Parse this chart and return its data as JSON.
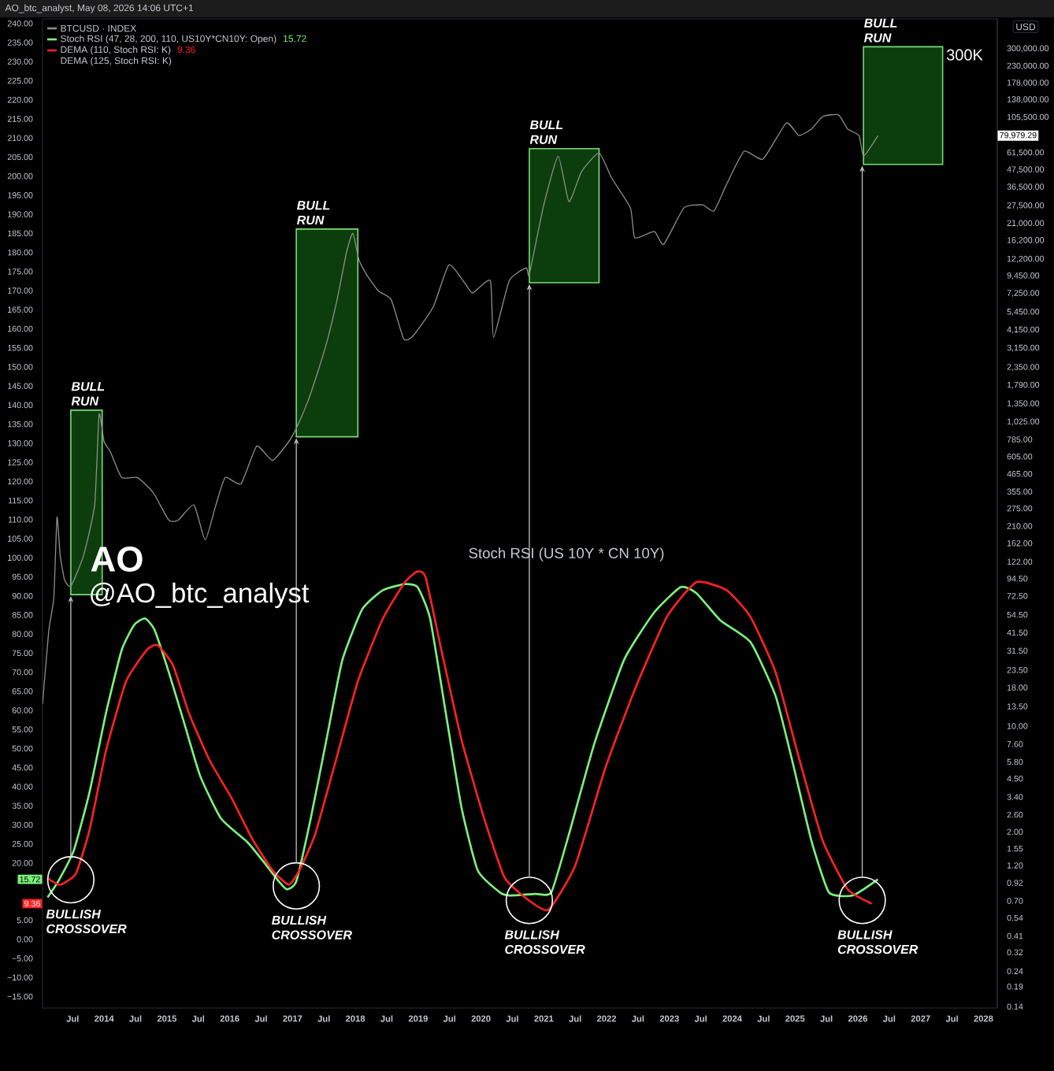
{
  "chart_data": {
    "type": "line",
    "title": "AO_btc_analyst, May 08, 2026 14:06 UTC+1",
    "y2label": "USD",
    "xlim": [
      2013.02,
      2028.22
    ],
    "xticks": [
      {
        "value": 2013.5,
        "label": "Jul"
      },
      2014,
      {
        "value": 2014.5,
        "label": "Jul"
      },
      2015,
      {
        "value": 2015.5,
        "label": "Jul"
      },
      2016,
      {
        "value": 2016.5,
        "label": "Jul"
      },
      2017,
      {
        "value": 2017.5,
        "label": "Jul"
      },
      2018,
      {
        "value": 2018.5,
        "label": "Jul"
      },
      2019,
      {
        "value": 2019.5,
        "label": "Jul"
      },
      2020,
      {
        "value": 2020.5,
        "label": "Jul"
      },
      2021,
      {
        "value": 2021.5,
        "label": "Jul"
      },
      2022,
      {
        "value": 2022.5,
        "label": "Jul"
      },
      2023,
      {
        "value": 2023.5,
        "label": "Jul"
      },
      2024,
      {
        "value": 2024.5,
        "label": "Jul"
      },
      2025,
      {
        "value": 2025.5,
        "label": "Jul"
      },
      2026,
      {
        "value": 2026.5,
        "label": "Jul"
      },
      2027,
      {
        "value": 2027.5,
        "label": "Jul"
      },
      2028
    ],
    "ylim": [
      -18,
      241.2
    ],
    "yticks": [
      {
        "value": -15,
        "label": "−15.00"
      },
      {
        "value": -10,
        "label": "−10.00"
      },
      {
        "value": -5,
        "label": "−5.00"
      },
      {
        "value": 0,
        "label": "0.00"
      },
      {
        "value": 5,
        "label": "5.00"
      },
      {
        "value": 20,
        "label": "20.00"
      },
      {
        "value": 25,
        "label": "25.00"
      },
      {
        "value": 30,
        "label": "30.00"
      },
      {
        "value": 35,
        "label": "35.00"
      },
      {
        "value": 40,
        "label": "40.00"
      },
      {
        "value": 45,
        "label": "45.00"
      },
      {
        "value": 50,
        "label": "50.00"
      },
      {
        "value": 55,
        "label": "55.00"
      },
      {
        "value": 60,
        "label": "60.00"
      },
      {
        "value": 65,
        "label": "65.00"
      },
      {
        "value": 70,
        "label": "70.00"
      },
      {
        "value": 75,
        "label": "75.00"
      },
      {
        "value": 80,
        "label": "80.00"
      },
      {
        "value": 85,
        "label": "85.00"
      },
      {
        "value": 90,
        "label": "90.00"
      },
      {
        "value": 95,
        "label": "95.00"
      },
      {
        "value": 100,
        "label": "100.00"
      },
      {
        "value": 105,
        "label": "105.00"
      },
      {
        "value": 110,
        "label": "110.00"
      },
      {
        "value": 115,
        "label": "115.00"
      },
      {
        "value": 120,
        "label": "120.00"
      },
      {
        "value": 125,
        "label": "125.00"
      },
      {
        "value": 130,
        "label": "130.00"
      },
      {
        "value": 135,
        "label": "135.00"
      },
      {
        "value": 140,
        "label": "140.00"
      },
      {
        "value": 145,
        "label": "145.00"
      },
      {
        "value": 150,
        "label": "150.00"
      },
      {
        "value": 155,
        "label": "155.00"
      },
      {
        "value": 160,
        "label": "160.00"
      },
      {
        "value": 165,
        "label": "165.00"
      },
      {
        "value": 170,
        "label": "170.00"
      },
      {
        "value": 175,
        "label": "175.00"
      },
      {
        "value": 180,
        "label": "180.00"
      },
      {
        "value": 185,
        "label": "185.00"
      },
      {
        "value": 190,
        "label": "190.00"
      },
      {
        "value": 195,
        "label": "195.00"
      },
      {
        "value": 200,
        "label": "200.00"
      },
      {
        "value": 205,
        "label": "205.00"
      },
      {
        "value": 210,
        "label": "210.00"
      },
      {
        "value": 215,
        "label": "215.00"
      },
      {
        "value": 220,
        "label": "220.00"
      },
      {
        "value": 225,
        "label": "225.00"
      },
      {
        "value": 230,
        "label": "230.00"
      },
      {
        "value": 235,
        "label": "235.00"
      },
      {
        "value": 240,
        "label": "240.00"
      }
    ],
    "log": "y2",
    "y2lim": [
      0.137,
      473000
    ],
    "y2ticks": [
      {
        "value": 300000,
        "label": "300,000.00"
      },
      {
        "value": 230000,
        "label": "230,000.00"
      },
      {
        "value": 178000,
        "label": "178,000.00"
      },
      {
        "value": 138000,
        "label": "138,000.00"
      },
      {
        "value": 105500,
        "label": "105,500.00"
      },
      {
        "value": 61500,
        "label": "61,500.00"
      },
      {
        "value": 47500,
        "label": "47,500.00"
      },
      {
        "value": 36500,
        "label": "36,500.00"
      },
      {
        "value": 27500,
        "label": "27,500.00"
      },
      {
        "value": 21000,
        "label": "21,000.00"
      },
      {
        "value": 16200,
        "label": "16,200.00"
      },
      {
        "value": 12200,
        "label": "12,200.00"
      },
      {
        "value": 9450,
        "label": "9,450.00"
      },
      {
        "value": 7250,
        "label": "7,250.00"
      },
      {
        "value": 5450,
        "label": "5,450.00"
      },
      {
        "value": 4150,
        "label": "4,150.00"
      },
      {
        "value": 3150,
        "label": "3,150.00"
      },
      {
        "value": 2350,
        "label": "2,350.00"
      },
      {
        "value": 1790,
        "label": "1,790.00"
      },
      {
        "value": 1350,
        "label": "1,350.00"
      },
      {
        "value": 1025,
        "label": "1,025.00"
      },
      {
        "value": 785,
        "label": "785.00"
      },
      {
        "value": 605,
        "label": "605.00"
      },
      {
        "value": 465,
        "label": "465.00"
      },
      {
        "value": 355,
        "label": "355.00"
      },
      {
        "value": 275,
        "label": "275.00"
      },
      {
        "value": 210,
        "label": "210.00"
      },
      {
        "value": 162,
        "label": "162.00"
      },
      {
        "value": 122,
        "label": "122.00"
      },
      {
        "value": 94.5,
        "label": "94.50"
      },
      {
        "value": 72.5,
        "label": "72.50"
      },
      {
        "value": 54.5,
        "label": "54.50"
      },
      {
        "value": 41.5,
        "label": "41.50"
      },
      {
        "value": 31.5,
        "label": "31.50"
      },
      {
        "value": 23.5,
        "label": "23.50"
      },
      {
        "value": 18,
        "label": "18.00"
      },
      {
        "value": 13.5,
        "label": "13.50"
      },
      {
        "value": 10,
        "label": "10.00"
      },
      {
        "value": 7.6,
        "label": "7.60"
      },
      {
        "value": 5.8,
        "label": "5.80"
      },
      {
        "value": 4.5,
        "label": "4.50"
      },
      {
        "value": 3.4,
        "label": "3.40"
      },
      {
        "value": 2.6,
        "label": "2.60"
      },
      {
        "value": 2,
        "label": "2.00"
      },
      {
        "value": 1.55,
        "label": "1.55"
      },
      {
        "value": 1.2,
        "label": "1.20"
      },
      {
        "value": 0.92,
        "label": "0.92"
      },
      {
        "value": 0.7,
        "label": "0.70"
      },
      {
        "value": 0.54,
        "label": "0.54"
      },
      {
        "value": 0.41,
        "label": "0.41"
      },
      {
        "value": 0.32,
        "label": "0.32"
      },
      {
        "value": 0.24,
        "label": "0.24"
      },
      {
        "value": 0.19,
        "label": "0.19"
      },
      {
        "value": 0.14,
        "label": "0.14"
      }
    ],
    "legend": "top left",
    "marker": "none",
    "line_style": "solid",
    "series": [
      {
        "name": "BTCUSD · INDEX",
        "color": "#8c8c8c",
        "axis": "y2",
        "x": [
          2013.02,
          2013.12,
          2013.2,
          2013.25,
          2013.3,
          2013.37,
          2013.47,
          2013.67,
          2013.85,
          2013.92,
          2014.0,
          2014.1,
          2014.28,
          2014.53,
          2014.78,
          2015.03,
          2015.18,
          2015.43,
          2015.61,
          2015.78,
          2015.93,
          2016.18,
          2016.43,
          2016.68,
          2016.94,
          2017.06,
          2017.24,
          2017.41,
          2017.56,
          2017.71,
          2017.86,
          2017.96,
          2018.06,
          2018.19,
          2018.37,
          2018.57,
          2018.77,
          2018.92,
          2019.24,
          2019.49,
          2019.75,
          2019.87,
          2020.15,
          2020.2,
          2020.45,
          2020.72,
          2020.77,
          2021.0,
          2021.23,
          2021.4,
          2021.6,
          2021.88,
          2022.08,
          2022.38,
          2022.45,
          2022.76,
          2022.91,
          2023.23,
          2023.53,
          2023.71,
          2023.91,
          2024.19,
          2024.49,
          2024.86,
          2025.06,
          2025.26,
          2025.44,
          2025.69,
          2025.84,
          2026.02,
          2026.09,
          2026.32
        ],
        "values": [
          14,
          43,
          71,
          240,
          136,
          93,
          84,
          133,
          290,
          1150,
          760,
          650,
          440,
          440,
          350,
          230,
          230,
          290,
          170,
          290,
          440,
          400,
          710,
          570,
          760,
          930,
          1390,
          2250,
          3630,
          6600,
          13600,
          18100,
          12000,
          9500,
          7500,
          6600,
          3630,
          3800,
          5900,
          11200,
          8400,
          7300,
          8800,
          3700,
          8800,
          10700,
          9700,
          27900,
          58700,
          29300,
          46200,
          61600,
          42000,
          26600,
          16900,
          18600,
          15300,
          26600,
          27900,
          25400,
          38100,
          63100,
          56000,
          97000,
          80200,
          88300,
          107000,
          110000,
          88300,
          80200,
          58700,
          79979.29
        ]
      },
      {
        "name": "Stoch RSI (47, 28, 200, 110, US10Y*CN10Y: Open)",
        "color": "#7cf07c",
        "x": [
          2013.1,
          2013.27,
          2013.52,
          2013.77,
          2014.03,
          2014.28,
          2014.48,
          2014.65,
          2014.8,
          2015.03,
          2015.28,
          2015.53,
          2015.86,
          2016.28,
          2016.53,
          2016.78,
          2016.91,
          2017.06,
          2017.29,
          2017.54,
          2017.79,
          2018.11,
          2018.44,
          2018.79,
          2018.99,
          2019.19,
          2019.44,
          2019.69,
          2019.95,
          2020.3,
          2020.45,
          2020.87,
          2021.12,
          2021.4,
          2021.8,
          2022.28,
          2022.76,
          2023.18,
          2023.43,
          2023.81,
          2024.29,
          2024.69,
          2024.96,
          2025.26,
          2025.54,
          2025.92,
          2026.32
        ],
        "values": [
          11,
          15.2,
          23.4,
          38.7,
          59.3,
          75.8,
          82.4,
          84.1,
          81.2,
          70,
          56.4,
          42.8,
          31.7,
          25.5,
          20.5,
          15.2,
          13.1,
          15.2,
          31.7,
          52.3,
          73,
          86.5,
          91.5,
          93.1,
          92.3,
          84.1,
          59.3,
          34.5,
          18,
          12.3,
          11.5,
          11.9,
          12.3,
          27.5,
          51,
          73.3,
          85.7,
          92.3,
          90.7,
          83.6,
          77.9,
          63.8,
          46.5,
          25.9,
          12.3,
          11.5,
          15.72
        ]
      },
      {
        "name": "DEMA (110, Stoch RSI: K)",
        "color": "#ff2222",
        "x": [
          2013.1,
          2013.3,
          2013.55,
          2013.77,
          2014.03,
          2014.35,
          2014.68,
          2014.85,
          2015.1,
          2015.35,
          2015.68,
          2016.03,
          2016.36,
          2016.68,
          2016.94,
          2017.11,
          2017.36,
          2017.69,
          2018.04,
          2018.44,
          2018.79,
          2018.99,
          2019.12,
          2019.37,
          2019.69,
          2020.05,
          2020.37,
          2020.7,
          2021.07,
          2021.5,
          2021.98,
          2022.45,
          2022.96,
          2023.43,
          2023.91,
          2024.29,
          2024.69,
          2025.06,
          2025.44,
          2025.84,
          2026.22
        ],
        "values": [
          16,
          14.3,
          17.2,
          28.8,
          49.4,
          67.6,
          75.8,
          77.1,
          71.7,
          59.3,
          46.9,
          37,
          26.3,
          18.1,
          14.3,
          18.1,
          27.5,
          46.9,
          67.6,
          84.1,
          93.6,
          96.4,
          94.8,
          75.8,
          52.3,
          31.7,
          16.4,
          11,
          7.7,
          19.3,
          44.9,
          65.5,
          84.5,
          93.6,
          91.5,
          84.5,
          70,
          47.7,
          25.9,
          13.1,
          9.36
        ]
      }
    ],
    "bands": [
      {
        "axis": "x",
        "from": 2013.47,
        "to": 2013.97,
        "label": "BULL RUN",
        "color": "#0c3d0c"
      },
      {
        "axis": "x",
        "from": 2017.06,
        "to": 2018.04,
        "label": "BULL RUN",
        "color": "#0c3d0c"
      },
      {
        "axis": "x",
        "from": 2020.77,
        "to": 2021.88,
        "label": "BULL RUN",
        "color": "#0c3d0c"
      },
      {
        "axis": "x",
        "from": 2026.09,
        "to": 2027.35,
        "label": "BULL RUN",
        "color": "#0c3d0c"
      }
    ],
    "annotations": [
      "DEMA (125, Stoch RSI: K)",
      "15.72",
      "9.36",
      "79,979.29",
      "Stoch RSI (US 10Y * CN 10Y)",
      "AO",
      "@AO_btc_analyst",
      "300K",
      {
        "text": "BULLISH CROSSOVER",
        "x": 2013.47,
        "y": 15.6
      },
      {
        "text": "BULLISH CROSSOVER",
        "x": 2017.06,
        "y": 14
      },
      {
        "text": "BULLISH CROSSOVER",
        "x": 2020.77,
        "y": 10.2
      },
      {
        "text": "BULLISH CROSSOVER",
        "x": 2026.07,
        "y": 10.2
      }
    ]
  }
}
